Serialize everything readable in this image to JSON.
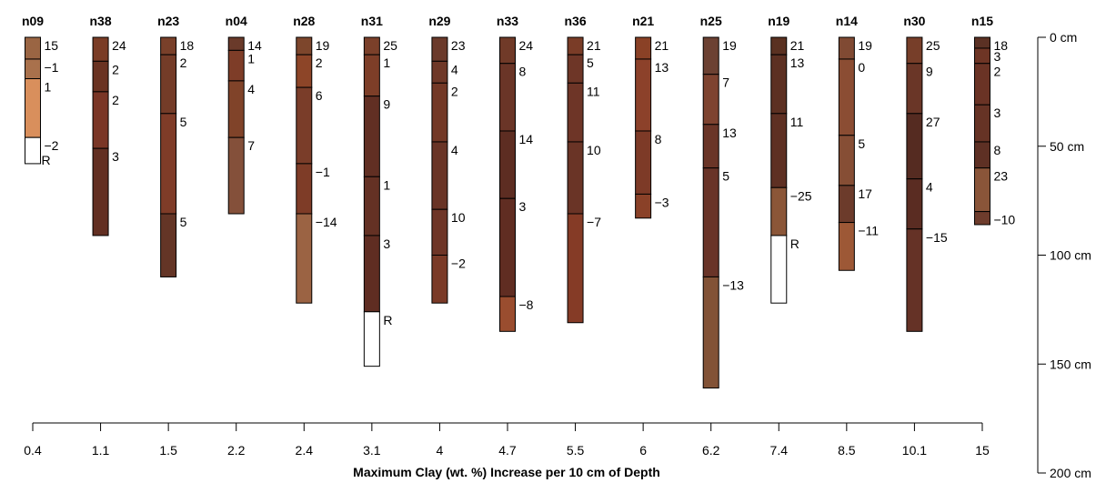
{
  "chart_data": {
    "type": "soil-profile",
    "xlabel": "Maximum Clay (wt. %) Increase per 10 cm of Depth",
    "ylabel": "",
    "depth_axis": {
      "ticks": [
        0,
        50,
        100,
        150,
        200
      ],
      "unit": "cm",
      "range": [
        0,
        200
      ]
    },
    "x_tick_labels": [
      "0.4",
      "1.1",
      "1.5",
      "2.2",
      "2.4",
      "3.1",
      "4",
      "4.7",
      "5.5",
      "6",
      "6.2",
      "7.4",
      "8.5",
      "10.1",
      "15"
    ],
    "profiles": [
      {
        "name": "n09",
        "x": "0.4",
        "horizons": [
          {
            "top": 0,
            "bottom": 10,
            "label": "15",
            "color": "#9a6543"
          },
          {
            "top": 10,
            "bottom": 19,
            "label": "−1",
            "color": "#a9714c"
          },
          {
            "top": 19,
            "bottom": 46,
            "label": "1",
            "color": "#d98f5c"
          },
          {
            "top": 46,
            "bottom": 58,
            "label": "−2",
            "sublabel": "R",
            "color": "#ffffff"
          }
        ]
      },
      {
        "name": "n38",
        "x": "1.1",
        "horizons": [
          {
            "top": 0,
            "bottom": 11,
            "label": "24",
            "color": "#7a3c26"
          },
          {
            "top": 11,
            "bottom": 25,
            "label": "2",
            "color": "#6a3322"
          },
          {
            "top": 25,
            "bottom": 51,
            "label": "2",
            "color": "#7a3626"
          },
          {
            "top": 51,
            "bottom": 91,
            "label": "3",
            "color": "#622f22"
          }
        ]
      },
      {
        "name": "n23",
        "x": "1.5",
        "horizons": [
          {
            "top": 0,
            "bottom": 8,
            "label": "18",
            "color": "#79402a"
          },
          {
            "top": 8,
            "bottom": 35,
            "label": "2",
            "color": "#743c28"
          },
          {
            "top": 35,
            "bottom": 81,
            "label": "5",
            "color": "#7f3c28"
          },
          {
            "top": 81,
            "bottom": 110,
            "label": "5",
            "color": "#643526"
          }
        ]
      },
      {
        "name": "n04",
        "x": "2.2",
        "horizons": [
          {
            "top": 0,
            "bottom": 6,
            "label": "14",
            "color": "#6a3a2a"
          },
          {
            "top": 6,
            "bottom": 20,
            "label": "1",
            "color": "#7e3d28"
          },
          {
            "top": 20,
            "bottom": 46,
            "label": "4",
            "color": "#804329"
          },
          {
            "top": 46,
            "bottom": 81,
            "label": "7",
            "color": "#84503a"
          }
        ]
      },
      {
        "name": "n28",
        "x": "2.4",
        "horizons": [
          {
            "top": 0,
            "bottom": 8,
            "label": "19",
            "color": "#7d462c"
          },
          {
            "top": 8,
            "bottom": 23,
            "label": "2",
            "color": "#8d4528"
          },
          {
            "top": 23,
            "bottom": 58,
            "label": "6",
            "color": "#7a3d29"
          },
          {
            "top": 58,
            "bottom": 81,
            "label": "−1",
            "color": "#7e3c27"
          },
          {
            "top": 81,
            "bottom": 122,
            "label": "−14",
            "color": "#9b6343"
          }
        ]
      },
      {
        "name": "n31",
        "x": "3.1",
        "horizons": [
          {
            "top": 0,
            "bottom": 8,
            "label": "25",
            "color": "#7b402a"
          },
          {
            "top": 8,
            "bottom": 27,
            "label": "1",
            "color": "#7d3e28"
          },
          {
            "top": 27,
            "bottom": 64,
            "label": "9",
            "color": "#612f23"
          },
          {
            "top": 64,
            "bottom": 91,
            "label": "1",
            "color": "#643124"
          },
          {
            "top": 91,
            "bottom": 126,
            "label": "3",
            "color": "#5f2d22"
          },
          {
            "top": 126,
            "bottom": 151,
            "label": "R",
            "color": "#ffffff"
          }
        ]
      },
      {
        "name": "n29",
        "x": "4",
        "horizons": [
          {
            "top": 0,
            "bottom": 11,
            "label": "23",
            "color": "#6b3a2b"
          },
          {
            "top": 11,
            "bottom": 21,
            "label": "4",
            "color": "#6f3828"
          },
          {
            "top": 21,
            "bottom": 48,
            "label": "2",
            "color": "#733826"
          },
          {
            "top": 48,
            "bottom": 79,
            "label": "4",
            "color": "#693426"
          },
          {
            "top": 79,
            "bottom": 100,
            "label": "10",
            "color": "#6e3527"
          },
          {
            "top": 100,
            "bottom": 122,
            "label": "−2",
            "color": "#7a3a27"
          }
        ]
      },
      {
        "name": "n33",
        "x": "4.7",
        "horizons": [
          {
            "top": 0,
            "bottom": 12,
            "label": "24",
            "color": "#703a28"
          },
          {
            "top": 12,
            "bottom": 43,
            "label": "8",
            "color": "#6a3527"
          },
          {
            "top": 43,
            "bottom": 74,
            "label": "14",
            "color": "#5d2d22"
          },
          {
            "top": 74,
            "bottom": 119,
            "label": "3",
            "color": "#602d22"
          },
          {
            "top": 119,
            "bottom": 135,
            "label": "−8",
            "color": "#9a4d2f"
          }
        ]
      },
      {
        "name": "n36",
        "x": "5.5",
        "horizons": [
          {
            "top": 0,
            "bottom": 8,
            "label": "21",
            "color": "#7a3c27"
          },
          {
            "top": 8,
            "bottom": 21,
            "label": "5",
            "color": "#6e3627"
          },
          {
            "top": 21,
            "bottom": 48,
            "label": "11",
            "color": "#6e3527"
          },
          {
            "top": 48,
            "bottom": 81,
            "label": "10",
            "color": "#6a3426"
          },
          {
            "top": 81,
            "bottom": 131,
            "label": "−7",
            "color": "#853b26"
          }
        ]
      },
      {
        "name": "n21",
        "x": "6",
        "horizons": [
          {
            "top": 0,
            "bottom": 10,
            "label": "21",
            "color": "#8a4126"
          },
          {
            "top": 10,
            "bottom": 43,
            "label": "13",
            "color": "#8c412a"
          },
          {
            "top": 43,
            "bottom": 72,
            "label": "8",
            "color": "#7d3a27"
          },
          {
            "top": 72,
            "bottom": 83,
            "label": "−3",
            "color": "#8a4128"
          }
        ]
      },
      {
        "name": "n25",
        "x": "6.2",
        "horizons": [
          {
            "top": 0,
            "bottom": 17,
            "label": "19",
            "color": "#6c4132"
          },
          {
            "top": 17,
            "bottom": 40,
            "label": "7",
            "color": "#7e4330"
          },
          {
            "top": 40,
            "bottom": 60,
            "label": "13",
            "color": "#6a3527"
          },
          {
            "top": 60,
            "bottom": 110,
            "label": "5",
            "color": "#693428"
          },
          {
            "top": 110,
            "bottom": 161,
            "label": "−13",
            "color": "#825236"
          }
        ]
      },
      {
        "name": "n19",
        "x": "7.4",
        "horizons": [
          {
            "top": 0,
            "bottom": 8,
            "label": "21",
            "color": "#5a3121"
          },
          {
            "top": 8,
            "bottom": 35,
            "label": "13",
            "color": "#5c3022"
          },
          {
            "top": 35,
            "bottom": 69,
            "label": "11",
            "color": "#5e3023"
          },
          {
            "top": 69,
            "bottom": 91,
            "label": "−25",
            "color": "#8b5638"
          },
          {
            "top": 91,
            "bottom": 122,
            "label": "R",
            "color": "#ffffff"
          }
        ]
      },
      {
        "name": "n14",
        "x": "8.5",
        "horizons": [
          {
            "top": 0,
            "bottom": 10,
            "label": "19",
            "color": "#804a33"
          },
          {
            "top": 10,
            "bottom": 45,
            "label": "0",
            "color": "#8b4d33"
          },
          {
            "top": 45,
            "bottom": 68,
            "label": "5",
            "color": "#864e35"
          },
          {
            "top": 68,
            "bottom": 85,
            "label": "17",
            "color": "#6c3b2b"
          },
          {
            "top": 85,
            "bottom": 107,
            "label": "−11",
            "color": "#9d5836"
          }
        ]
      },
      {
        "name": "n30",
        "x": "10.1",
        "horizons": [
          {
            "top": 0,
            "bottom": 12,
            "label": "25",
            "color": "#773e29"
          },
          {
            "top": 12,
            "bottom": 35,
            "label": "9",
            "color": "#6a3627"
          },
          {
            "top": 35,
            "bottom": 65,
            "label": "27",
            "color": "#552b21"
          },
          {
            "top": 65,
            "bottom": 88,
            "label": "4",
            "color": "#5a2c22"
          },
          {
            "top": 88,
            "bottom": 135,
            "label": "−15",
            "color": "#653226"
          }
        ]
      },
      {
        "name": "n15",
        "x": "15",
        "horizons": [
          {
            "top": 0,
            "bottom": 5,
            "label": "18",
            "color": "#5b3124"
          },
          {
            "top": 5,
            "bottom": 12,
            "label": "3",
            "color": "#6e3525"
          },
          {
            "top": 12,
            "bottom": 31,
            "label": "2",
            "color": "#6a3325"
          },
          {
            "top": 31,
            "bottom": 48,
            "label": "3",
            "color": "#663325"
          },
          {
            "top": 48,
            "bottom": 60,
            "label": "8",
            "color": "#5e3024"
          },
          {
            "top": 60,
            "bottom": 80,
            "label": "23",
            "color": "#8a5539"
          },
          {
            "top": 80,
            "bottom": 86,
            "label": "−10",
            "color": "#6e3c2c"
          }
        ]
      }
    ]
  }
}
